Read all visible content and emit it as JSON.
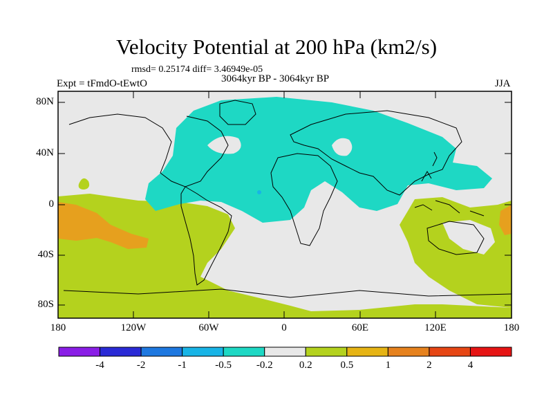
{
  "title": "Velocity Potential at 200 hPa (km2/s)",
  "stats": "rmsd= 0.25174 diff= 3.46949e-05",
  "period": "3064kyr BP - 3064kyr BP",
  "experiment": "Expt = tFmdO-tEwtO",
  "season": "JJA",
  "axes": {
    "x_ticks": [
      "180",
      "120W",
      "60W",
      "0",
      "60E",
      "120E",
      "180"
    ],
    "y_ticks": [
      "80N",
      "40N",
      "0",
      "40S",
      "80S"
    ]
  },
  "colorbar": {
    "labels": [
      "-4",
      "-2",
      "-1",
      "-0.5",
      "-0.2",
      "0.2",
      "0.5",
      "1",
      "2",
      "4"
    ],
    "colors": [
      "#8a1ee6",
      "#2a2ad6",
      "#1e78e0",
      "#18b4e6",
      "#1ed8c4",
      "#e8e8e8",
      "#b4d21e",
      "#e6b414",
      "#e6821e",
      "#e64614",
      "#e61414"
    ]
  },
  "map": {
    "background_color": "#e8e8e8",
    "positive_color": "#b4d21e",
    "negative_color": "#1ed8c4",
    "strong_positive_color": "#e6a01e"
  }
}
